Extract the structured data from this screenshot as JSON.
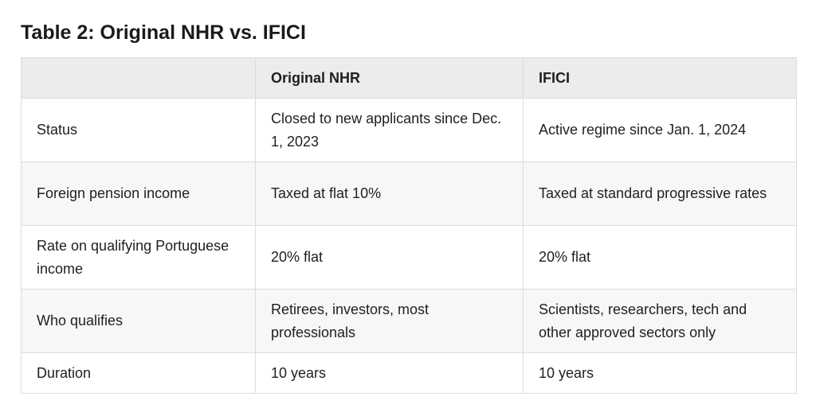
{
  "title": "Table 2: Original NHR vs. IFICI",
  "table": {
    "headers": [
      "",
      "Original NHR",
      "IFICI"
    ],
    "rows": [
      [
        "Status",
        "Closed to new applicants since Dec. 1, 2023",
        "Active regime since Jan. 1, 2024"
      ],
      [
        "Foreign pension income",
        "Taxed at flat 10%",
        "Taxed at standard progressive rates"
      ],
      [
        "Rate on qualifying Portuguese income",
        "20% flat",
        "20% flat"
      ],
      [
        "Who qualifies",
        "Retirees, investors, most professionals",
        "Scientists, researchers, tech and other approved sectors only"
      ],
      [
        "Duration",
        "10 years",
        "10 years"
      ]
    ]
  },
  "colors": {
    "header_bg": "#ececec",
    "alt_row_bg": "#f7f7f7",
    "border": "#dcdcdc"
  }
}
